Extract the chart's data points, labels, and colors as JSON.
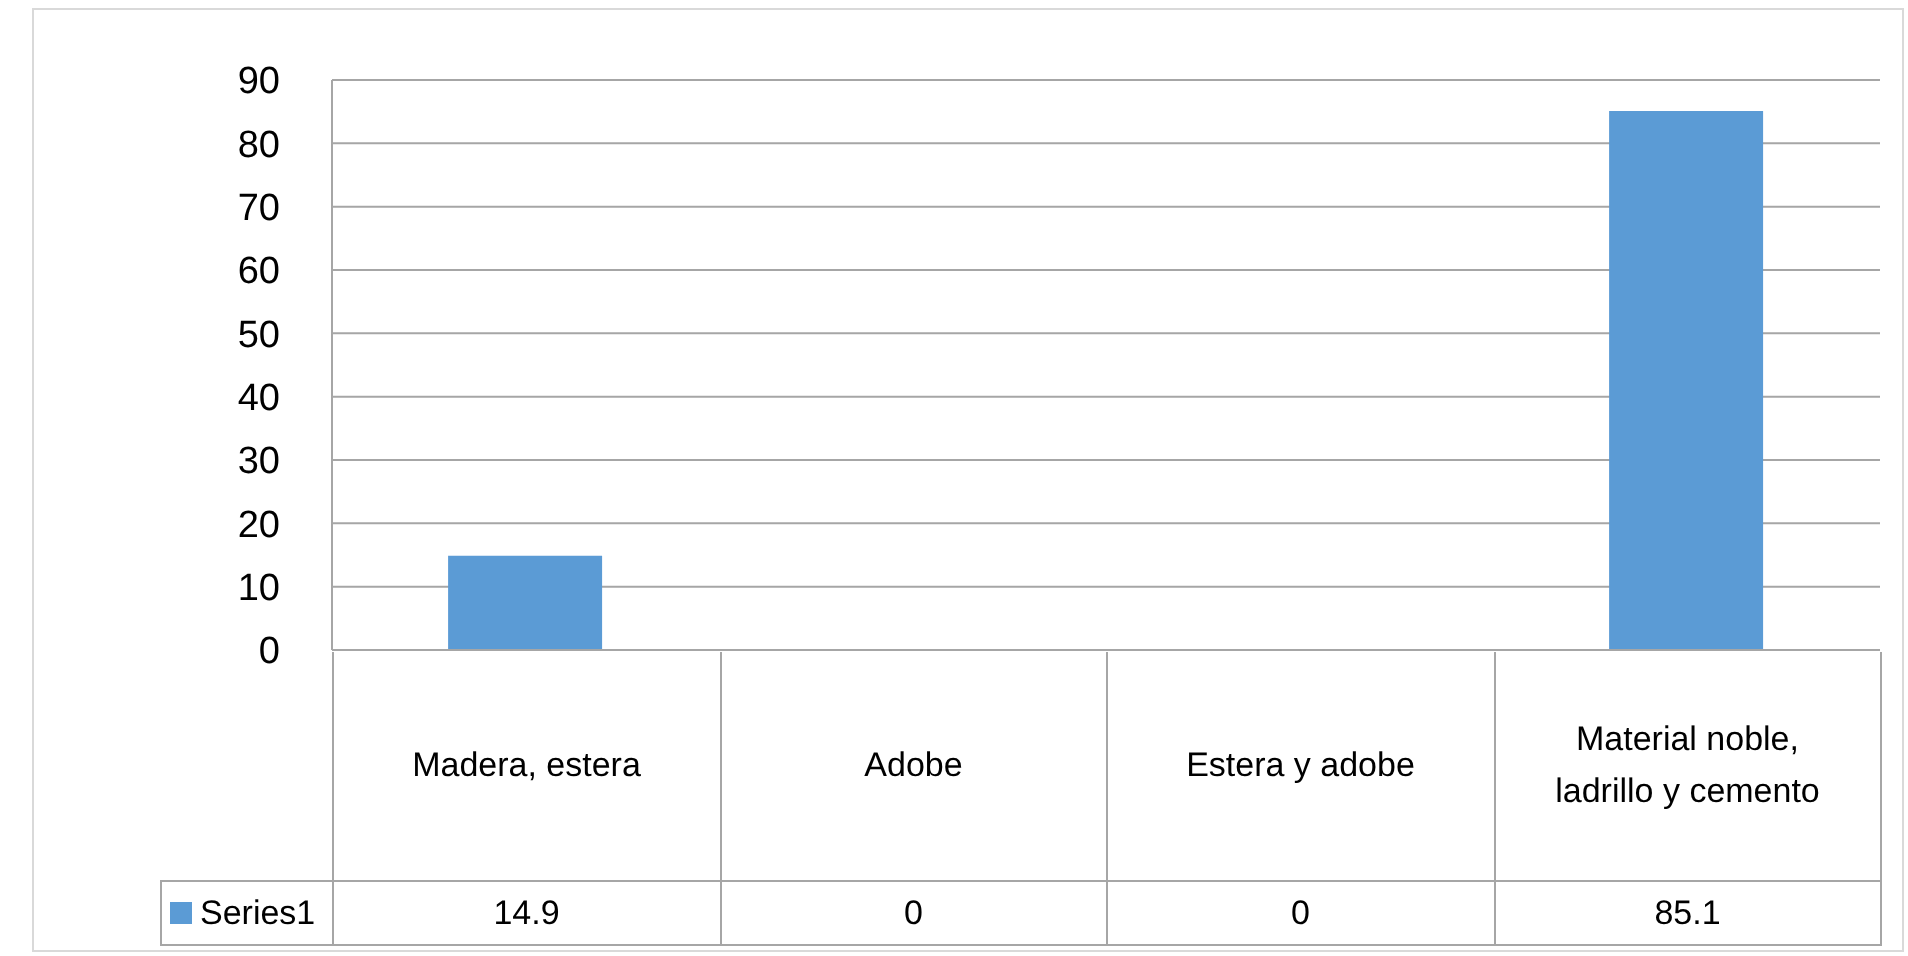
{
  "chart_data": {
    "type": "bar",
    "categories": [
      "Madera, estera",
      "Adobe",
      "Estera y adobe",
      "Material noble, ladrillo y cemento"
    ],
    "series": [
      {
        "name": "Series1",
        "color": "#5b9bd5",
        "values": [
          14.9,
          0,
          0,
          85.1
        ]
      }
    ],
    "ylim": [
      0,
      90
    ],
    "yticks": [
      0,
      10,
      20,
      30,
      40,
      50,
      60,
      70,
      80,
      90
    ],
    "grid": "y",
    "legend": "bottom",
    "data_labels": true
  }
}
